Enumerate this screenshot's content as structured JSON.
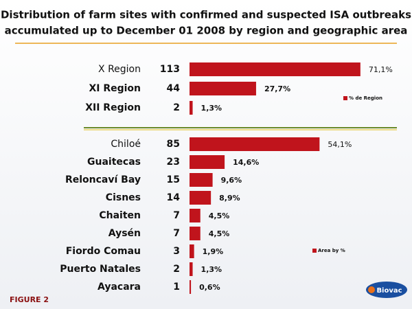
{
  "title": [
    "Distribution of farm sites with confirmed and suspected ISA outbreaks",
    "accumulated up to December 01 2008 by region and geographic area"
  ],
  "figure_label": "FIGURE 2",
  "logo": "Biovac",
  "chart_data": [
    {
      "type": "bar",
      "orientation": "horizontal",
      "color": "#c0141c",
      "series_name": "% de Region",
      "categories": [
        "X Region",
        "XI Region",
        "XII Region"
      ],
      "counts": [
        113,
        44,
        2
      ],
      "values": [
        71.1,
        27.7,
        1.3
      ],
      "value_labels": [
        "71,1%",
        "27,7%",
        "1,3%"
      ]
    },
    {
      "type": "bar",
      "orientation": "horizontal",
      "color": "#c0141c",
      "series_name": "Area by %",
      "categories": [
        "Chiloé",
        "Guaitecas",
        "Reloncaví Bay",
        "Cisnes",
        "Chaiten",
        "Aysén",
        "Fiordo Comau",
        "Puerto Natales",
        "Ayacara"
      ],
      "counts": [
        85,
        23,
        15,
        14,
        7,
        7,
        3,
        2,
        1
      ],
      "values": [
        54.1,
        14.6,
        9.6,
        8.9,
        4.5,
        4.5,
        1.9,
        1.3,
        0.6
      ],
      "value_labels": [
        "54,1%",
        "14,6%",
        "9,6%",
        "8,9%",
        "4,5%",
        "4,5%",
        "1,9%",
        "1,3%",
        "0,6%"
      ]
    }
  ]
}
